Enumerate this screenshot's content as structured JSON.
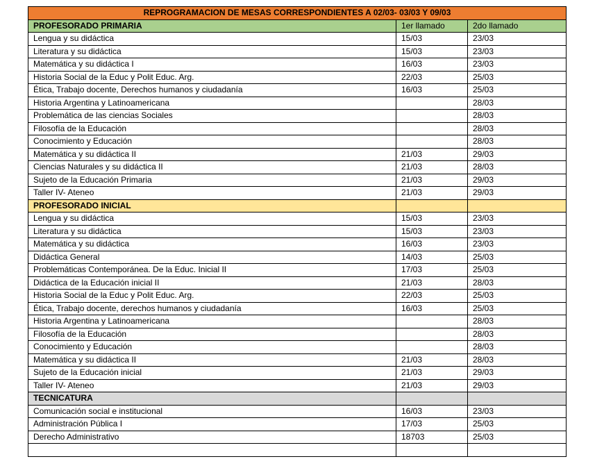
{
  "title": "REPROGRAMACION DE MESAS CORRESPONDIENTES A 02/03- 03/03 Y 09/03",
  "colors": {
    "title_bg": "#ED7D31",
    "primaria_bg": "#A9D08E",
    "inicial_bg": "#FFE699",
    "tecnicatura_bg": "#D9D9D9"
  },
  "sections": [
    {
      "key": "primaria",
      "name": "PROFESORADO PRIMARIA",
      "col1": "1er llamado",
      "col2": "2do llamado",
      "rows": [
        [
          "Lengua y su didáctica",
          "15/03",
          "23/03"
        ],
        [
          "Literatura y su didáctica",
          "15/03",
          "23/03"
        ],
        [
          "Matemática y su didáctica I",
          "16/03",
          "23/03"
        ],
        [
          "Historia Social de la Educ y Polit Educ. Arg.",
          "22/03",
          "25/03"
        ],
        [
          "Ética, Trabajo docente, Derechos humanos y ciudadanía",
          "16/03",
          "25/03"
        ],
        [
          "Historia Argentina y Latinoamericana",
          "",
          "28/03"
        ],
        [
          "Problemática de las ciencias Sociales",
          "",
          "28/03"
        ],
        [
          "Filosofía de la Educación",
          "",
          "28/03"
        ],
        [
          "Conocimiento y Educación",
          "",
          "28/03"
        ],
        [
          "Matemática y su didáctica II",
          "21/03",
          "29/03"
        ],
        [
          "Ciencias Naturales y su didáctica II",
          "21/03",
          "28/03"
        ],
        [
          "Sujeto de la Educación Primaria",
          "21/03",
          "29/03"
        ],
        [
          "Taller IV- Ateneo",
          "21/03",
          "29/03"
        ]
      ]
    },
    {
      "key": "inicial",
      "name": "PROFESORADO INICIAL",
      "col1": "",
      "col2": "",
      "rows": [
        [
          "Lengua y su didáctica",
          "15/03",
          "23/03"
        ],
        [
          "Literatura y su didáctica",
          "15/03",
          "23/03"
        ],
        [
          "Matemática y su didáctica",
          "16/03",
          "23/03"
        ],
        [
          "Didáctica General",
          "14/03",
          "25/03"
        ],
        [
          "Problemáticas Contemporánea. De la Educ. Inicial II",
          "17/03",
          "25/03"
        ],
        [
          "Didáctica de la Educación inicial II",
          "21/03",
          "28/03"
        ],
        [
          "Historia Social de la Educ y Polit Educ. Arg.",
          "22/03",
          "25/03"
        ],
        [
          "Ética, Trabajo docente, derechos humanos y ciudadanía",
          "16/03",
          "25/03"
        ],
        [
          "Historia Argentina y Latinoamericana",
          "",
          "28/03"
        ],
        [
          "Filosofía de la Educación",
          "",
          "28/03"
        ],
        [
          "Conocimiento y Educación",
          "",
          "28/03"
        ],
        [
          "Matemática y su didáctica II",
          "21/03",
          "28/03"
        ],
        [
          "Sujeto de la Educación inicial",
          "21/03",
          "29/03"
        ],
        [
          "Taller IV- Ateneo",
          "21/03",
          "29/03"
        ]
      ]
    },
    {
      "key": "tec",
      "name": "TECNICATURA",
      "col1": "",
      "col2": "",
      "rows": [
        [
          "Comunicación social e institucional",
          "16/03",
          "23/03"
        ],
        [
          "Administración Pública I",
          "17/03",
          "25/03"
        ],
        [
          "Derecho Administrativo",
          "18703",
          "25/03"
        ],
        [
          "",
          "",
          ""
        ]
      ]
    }
  ]
}
